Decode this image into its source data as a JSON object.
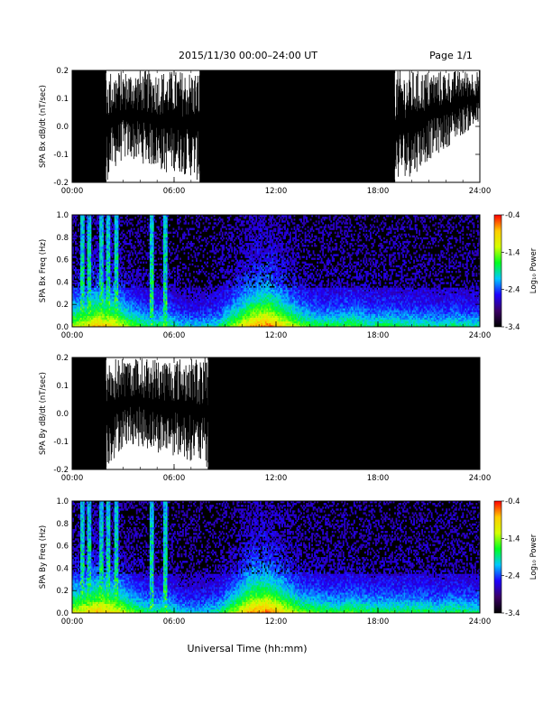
{
  "header": {
    "title": "2015/11/30  00:00–24:00 UT",
    "page_label": "Page 1/1"
  },
  "xlabel": "Universal Time (hh:mm)",
  "chart_data": [
    {
      "type": "line",
      "ylabel": "SPA Bx dB/dt (nT/sec)",
      "xlim": [
        "00:00",
        "24:00"
      ],
      "ylim": [
        -0.2,
        0.2
      ],
      "xticks": [
        "00:00",
        "06:00",
        "12:00",
        "18:00",
        "24:00"
      ],
      "yticks": [
        "-0.2",
        "-0.1",
        "0.0",
        "0.1",
        "0.2"
      ],
      "x_hours": [
        0,
        0.5,
        1,
        1.5,
        2,
        2.5,
        3,
        3.5,
        4,
        4.5,
        5,
        5.5,
        6,
        6.5,
        7,
        7.5,
        8,
        8.5,
        9,
        9.5,
        10,
        10.5,
        11,
        11.5,
        12,
        12.5,
        13,
        13.5,
        14,
        14.5,
        15,
        15.5,
        16,
        16.5,
        17,
        17.5,
        18,
        18.5,
        19,
        19.5,
        20,
        20.5,
        21,
        21.5,
        22,
        22.5,
        23,
        23.5,
        24
      ],
      "upper_envelope": [
        0.2,
        0.2,
        0.2,
        0.2,
        0.2,
        0.2,
        0.2,
        0.2,
        0.2,
        0.2,
        0.2,
        0.2,
        0.2,
        0.2,
        0.2,
        0.2,
        0.2,
        0.2,
        0.2,
        0.2,
        0.2,
        0.2,
        0.2,
        0.2,
        0.2,
        0.2,
        0.2,
        0.2,
        0.2,
        0.2,
        0.2,
        0.2,
        0.2,
        0.2,
        0.2,
        0.2,
        0.2,
        0.2,
        0.2,
        0.2,
        0.2,
        0.2,
        0.2,
        0.2,
        0.2,
        0.2,
        0.2,
        0.2,
        0.2
      ],
      "lower_envelope": [
        -0.2,
        -0.2,
        -0.2,
        -0.2,
        -0.2,
        -0.15,
        -0.12,
        -0.12,
        -0.13,
        -0.14,
        -0.15,
        -0.17,
        -0.16,
        -0.17,
        -0.18,
        -0.2,
        -0.2,
        -0.2,
        -0.2,
        -0.2,
        -0.2,
        -0.2,
        -0.2,
        -0.2,
        -0.2,
        -0.2,
        -0.2,
        -0.2,
        -0.2,
        -0.2,
        -0.2,
        -0.2,
        -0.2,
        -0.2,
        -0.2,
        -0.2,
        -0.2,
        -0.2,
        -0.2,
        -0.18,
        -0.18,
        -0.15,
        -0.12,
        -0.1,
        -0.08,
        -0.05,
        -0.03,
        -0.01,
        0.0
      ]
    },
    {
      "type": "heatmap",
      "ylabel": "SPA Bx Freq (Hz)",
      "xlim": [
        "00:00",
        "24:00"
      ],
      "ylim": [
        0.0,
        1.0
      ],
      "xticks": [
        "00:00",
        "06:00",
        "12:00",
        "18:00",
        "24:00"
      ],
      "yticks": [
        "0.0",
        "0.2",
        "0.4",
        "0.6",
        "0.8",
        "1.0"
      ],
      "colorbar": {
        "label": "Log₁₀ Power",
        "range": [
          -3.4,
          -0.4
        ],
        "ticks": [
          "-0.4",
          "-1.4",
          "-2.4",
          "-3.4"
        ],
        "colors": [
          "#000000",
          "#3b0066",
          "#1e00ff",
          "#00c8ff",
          "#00ff20",
          "#d4ff00",
          "#ffcc00",
          "#ff0000"
        ]
      },
      "activity_by_hour": [
        0.7,
        0.9,
        0.8,
        0.6,
        0.45,
        0.5,
        0.35,
        0.35,
        0.4,
        0.65,
        0.9,
        1.0,
        0.8,
        0.6,
        0.5,
        0.5,
        0.55,
        0.45,
        0.5,
        0.45,
        0.45,
        0.4,
        0.45,
        0.4
      ]
    },
    {
      "type": "line",
      "ylabel": "SPA By dB/dt (nT/sec)",
      "xlim": [
        "00:00",
        "24:00"
      ],
      "ylim": [
        -0.2,
        0.2
      ],
      "xticks": [
        "00:00",
        "06:00",
        "12:00",
        "18:00",
        "24:00"
      ],
      "yticks": [
        "-0.2",
        "-0.1",
        "0.0",
        "0.1",
        "0.2"
      ],
      "x_hours": [
        0,
        0.5,
        1,
        1.5,
        2,
        2.5,
        3,
        3.5,
        4,
        4.5,
        5,
        5.5,
        6,
        6.5,
        7,
        7.5,
        8,
        8.5,
        9,
        9.5,
        10,
        10.5,
        11,
        11.5,
        12,
        12.5,
        13,
        13.5,
        14,
        14.5,
        15,
        15.5,
        16,
        16.5,
        17,
        17.5,
        18,
        18.5,
        19,
        19.5,
        20,
        20.5,
        21,
        21.5,
        22,
        22.5,
        23,
        23.5,
        24
      ],
      "upper_envelope": [
        0.2,
        0.2,
        0.2,
        0.2,
        0.2,
        0.2,
        0.2,
        0.2,
        0.2,
        0.2,
        0.2,
        0.2,
        0.2,
        0.2,
        0.2,
        0.2,
        0.2,
        0.2,
        0.2,
        0.2,
        0.2,
        0.2,
        0.2,
        0.2,
        0.2,
        0.2,
        0.2,
        0.2,
        0.2,
        0.2,
        0.2,
        0.2,
        0.2,
        0.2,
        0.2,
        0.2,
        0.2,
        0.2,
        0.2,
        0.2,
        0.2,
        0.2,
        0.2,
        0.2,
        0.2,
        0.2,
        0.2,
        0.2,
        0.2
      ],
      "lower_envelope": [
        -0.2,
        -0.2,
        -0.2,
        -0.2,
        -0.2,
        -0.16,
        -0.12,
        -0.11,
        -0.12,
        -0.13,
        -0.14,
        -0.15,
        -0.15,
        -0.16,
        -0.17,
        -0.18,
        -0.2,
        -0.2,
        -0.2,
        -0.2,
        -0.2,
        -0.2,
        -0.2,
        -0.2,
        -0.2,
        -0.2,
        -0.2,
        -0.2,
        -0.2,
        -0.2,
        -0.2,
        -0.2,
        -0.2,
        -0.2,
        -0.2,
        -0.2,
        -0.2,
        -0.2,
        -0.2,
        -0.2,
        -0.2,
        -0.2,
        -0.2,
        -0.2,
        -0.2,
        -0.2,
        -0.2,
        -0.2,
        -0.2
      ]
    },
    {
      "type": "heatmap",
      "ylabel": "SPA By Freq (Hz)",
      "xlim": [
        "00:00",
        "24:00"
      ],
      "ylim": [
        0.0,
        1.0
      ],
      "xticks": [
        "00:00",
        "06:00",
        "12:00",
        "18:00",
        "24:00"
      ],
      "yticks": [
        "0.0",
        "0.2",
        "0.4",
        "0.6",
        "0.8",
        "1.0"
      ],
      "colorbar": {
        "label": "Log₁₀ Power",
        "range": [
          -3.4,
          -0.4
        ],
        "ticks": [
          "-0.4",
          "-1.4",
          "-2.4",
          "-3.4"
        ],
        "colors": [
          "#000000",
          "#3b0066",
          "#1e00ff",
          "#00c8ff",
          "#00ff20",
          "#d4ff00",
          "#ffcc00",
          "#ff0000"
        ]
      },
      "activity_by_hour": [
        0.75,
        0.9,
        0.8,
        0.6,
        0.45,
        0.5,
        0.35,
        0.35,
        0.4,
        0.65,
        0.95,
        1.0,
        0.8,
        0.6,
        0.55,
        0.5,
        0.55,
        0.5,
        0.5,
        0.5,
        0.5,
        0.45,
        0.5,
        0.45
      ]
    }
  ]
}
